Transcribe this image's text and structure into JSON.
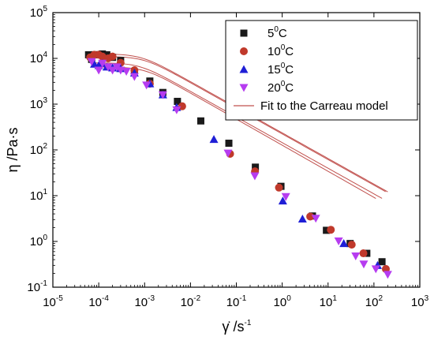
{
  "chart_data": {
    "type": "scatter",
    "xscale": "log",
    "yscale": "log",
    "xlim_exp": [
      -5,
      3
    ],
    "ylim_exp": [
      -1,
      5
    ],
    "x_ticks": [
      {
        "base": "10",
        "exp": "-5"
      },
      {
        "base": "10",
        "exp": "-4"
      },
      {
        "base": "10",
        "exp": "-3"
      },
      {
        "base": "10",
        "exp": "-2"
      },
      {
        "base": "10",
        "exp": "-1"
      },
      {
        "base": "10",
        "exp": "0"
      },
      {
        "base": "10",
        "exp": "1"
      },
      {
        "base": "10",
        "exp": "2"
      },
      {
        "base": "10",
        "exp": "3"
      }
    ],
    "y_ticks": [
      {
        "base": "10",
        "exp": "-1"
      },
      {
        "base": "10",
        "exp": "0"
      },
      {
        "base": "10",
        "exp": "1"
      },
      {
        "base": "10",
        "exp": "2"
      },
      {
        "base": "10",
        "exp": "3"
      },
      {
        "base": "10",
        "exp": "4"
      },
      {
        "base": "10",
        "exp": "5"
      }
    ],
    "xlabel": {
      "main": "γ̇ /s",
      "sup": "-1"
    },
    "ylabel": "η /Pa·s",
    "legend": {
      "position": "top-right",
      "entries": [
        {
          "marker": "square",
          "color": "#1a1a1a",
          "text": "5",
          "sup": "0",
          "suffix": "C"
        },
        {
          "marker": "circle",
          "color": "#c0392b",
          "text": "10",
          "sup": "0",
          "suffix": "C"
        },
        {
          "marker": "triangle-up",
          "color": "#1f1fd6",
          "text": "15",
          "sup": "0",
          "suffix": "C"
        },
        {
          "marker": "triangle-down",
          "color": "#b63cf0",
          "text": "20",
          "sup": "0",
          "suffix": "C"
        },
        {
          "marker": "line",
          "color": "#c0504d",
          "text": "Fit to the Carreau model",
          "sup": "",
          "suffix": ""
        }
      ]
    },
    "series": [
      {
        "name": "50C",
        "marker": "square",
        "color": "#1a1a1a",
        "x": [
          6e-05,
          7e-05,
          8e-05,
          0.0001,
          0.00012,
          0.00015,
          0.0002,
          0.0003,
          0.0006,
          0.0013,
          0.0025,
          0.0052,
          0.0168,
          0.0687,
          0.26,
          0.94,
          4.57,
          9.2,
          30.3,
          70,
          150
        ],
        "y": [
          12000,
          9500,
          12000,
          12000,
          12500,
          12000,
          10500,
          9000,
          5000,
          3200,
          1800,
          1150,
          430,
          140,
          42,
          16,
          3.6,
          1.75,
          0.9,
          0.55,
          0.36
        ]
      },
      {
        "name": "100C",
        "marker": "circle",
        "color": "#c0392b",
        "x": [
          6.5e-05,
          8e-05,
          0.0001,
          0.00012,
          0.00016,
          0.0002,
          0.0003,
          0.0006,
          0.0013,
          0.0066,
          0.0731,
          0.255,
          0.85,
          4.08,
          11.5,
          32.8,
          59,
          182
        ],
        "y": [
          10500,
          12000,
          12000,
          11000,
          10000,
          11000,
          8000,
          5500,
          2800,
          900,
          82,
          34,
          15,
          3.5,
          1.8,
          0.85,
          0.55,
          0.25
        ]
      },
      {
        "name": "150C",
        "marker": "triangle-up",
        "color": "#1f1fd6",
        "x": [
          8e-05,
          0.0001,
          0.00012,
          0.00015,
          0.0002,
          0.0003,
          0.0006,
          0.0013,
          0.0025,
          0.005,
          0.0324,
          1.03,
          2.77,
          22,
          120
        ],
        "y": [
          7500,
          7000,
          7800,
          6500,
          6200,
          6000,
          4800,
          2800,
          1600,
          850,
          170,
          7.7,
          3.1,
          0.9,
          0.3
        ]
      },
      {
        "name": "200C",
        "marker": "triangle-down",
        "color": "#b63cf0",
        "x": [
          7e-05,
          0.0001,
          0.00012,
          0.00016,
          0.0002,
          0.00025,
          0.0003,
          0.0004,
          0.0006,
          0.0011,
          0.0025,
          0.005,
          0.0659,
          0.253,
          1.2,
          5.4,
          17,
          40,
          60,
          110,
          200
        ],
        "y": [
          8500,
          5500,
          7800,
          6500,
          5500,
          6500,
          5500,
          5200,
          4000,
          2600,
          1600,
          750,
          85,
          27,
          9.5,
          3.2,
          1.02,
          0.48,
          0.32,
          0.25,
          0.19
        ]
      }
    ],
    "fit_lines": {
      "name": "Fit to the Carreau model",
      "color": "#c0504d",
      "curves": [
        {
          "eta0": 12500,
          "lambda": 1200,
          "n": 0.44,
          "xmin": 6e-05,
          "xmax": 200
        },
        {
          "eta0": 11000,
          "lambda": 1050,
          "n": 0.44,
          "xmin": 6e-05,
          "xmax": 180
        },
        {
          "eta0": 8000,
          "lambda": 1300,
          "n": 0.44,
          "xmin": 7e-05,
          "xmax": 150
        },
        {
          "eta0": 6500,
          "lambda": 1000,
          "n": 0.43,
          "xmin": 7e-05,
          "xmax": 110
        }
      ]
    }
  }
}
